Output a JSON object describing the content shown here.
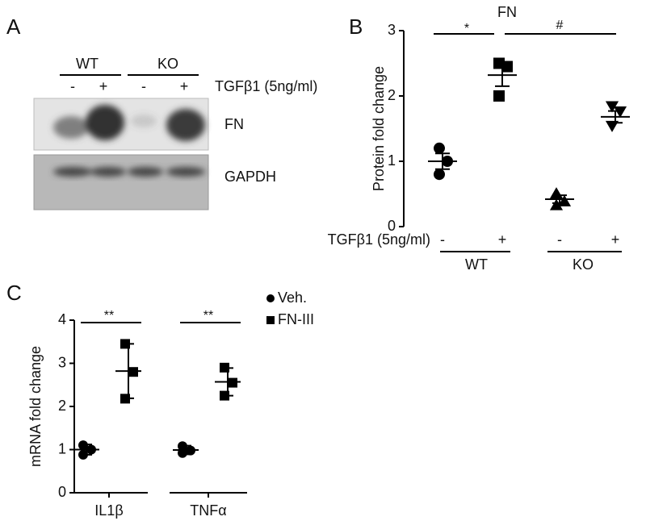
{
  "panel_a": {
    "label": "A",
    "groups": [
      "WT",
      "KO"
    ],
    "lanes": [
      "-",
      "+",
      "-",
      "+"
    ],
    "treatment": "TGFβ1 (5ng/ml)",
    "bands": [
      "FN",
      "GAPDH"
    ]
  },
  "chart_data": [
    {
      "type": "dot",
      "panel": "B",
      "title": "FN",
      "ylabel": "Protein fold change",
      "xlabel": "TGFβ1 (5ng/ml)",
      "categories": [
        "-",
        "+",
        "-",
        "+"
      ],
      "group_labels": [
        "WT",
        "KO"
      ],
      "markers": [
        "circle",
        "square",
        "triangle-up",
        "triangle-down"
      ],
      "color": "#000000",
      "points": [
        [
          1.2,
          1.0,
          0.8
        ],
        [
          2.5,
          2.45,
          2.0
        ],
        [
          0.5,
          0.38,
          0.32
        ],
        [
          1.85,
          1.77,
          1.55
        ]
      ],
      "mean": [
        1.0,
        2.32,
        0.42,
        1.68
      ],
      "error": [
        0.12,
        0.17,
        0.06,
        0.09
      ],
      "ylim": [
        0,
        3
      ],
      "yticks": [
        0,
        1,
        2,
        3
      ],
      "annotations": [
        {
          "text": "*"
        },
        {
          "text": "#"
        }
      ]
    },
    {
      "type": "dot",
      "panel": "C",
      "ylabel": "mRNA fold change",
      "categories": [
        "IL1β",
        "TNFα"
      ],
      "color": "#000000",
      "series": [
        {
          "name": "Veh.",
          "marker": "circle",
          "points": [
            [
              1.1,
              1.0,
              0.88
            ],
            [
              1.08,
              0.98,
              0.92
            ]
          ],
          "mean": [
            1.0,
            0.99
          ],
          "error": [
            0.12,
            0.1
          ]
        },
        {
          "name": "FN-III",
          "marker": "square",
          "points": [
            [
              3.45,
              2.8,
              2.18
            ],
            [
              2.9,
              2.55,
              2.25
            ]
          ],
          "mean": [
            2.82,
            2.57
          ],
          "error": [
            0.63,
            0.32
          ]
        }
      ],
      "ylim": [
        0,
        4
      ],
      "yticks": [
        0,
        1,
        2,
        3,
        4
      ],
      "annotations": [
        {
          "text": "**"
        },
        {
          "text": "**"
        }
      ]
    }
  ]
}
